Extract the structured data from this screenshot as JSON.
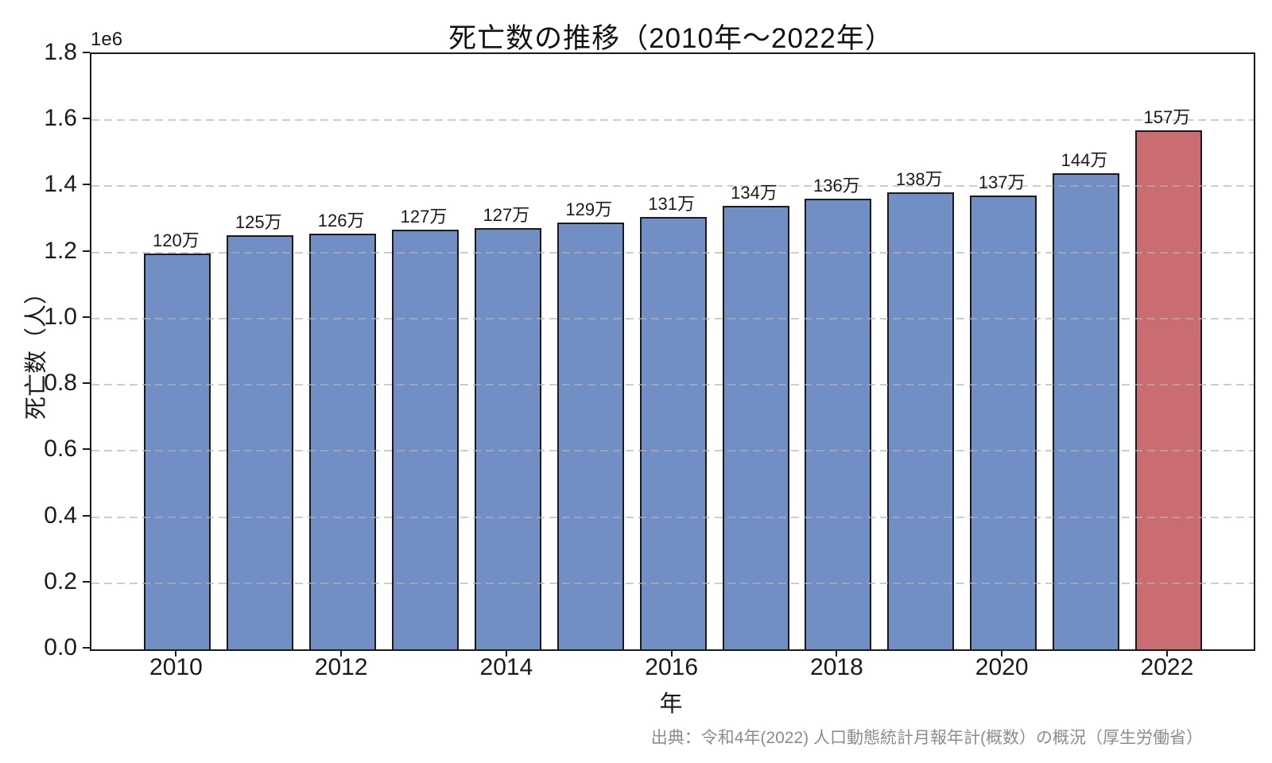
{
  "title": "死亡数の推移（2010年～2022年）",
  "axis_offset_label": "1e6",
  "xlabel": "年",
  "ylabel": "死亡数（人）",
  "source": "出典：令和4年(2022) 人口動態統計月報年計(概数）の概況（厚生労働省）",
  "colors": {
    "bar": "#728FC5",
    "bar_highlight": "#C96D72",
    "bar_edge": "#1a1a1a",
    "grid": "#cccccc",
    "source_text": "#8c8c8c"
  },
  "chart_data": {
    "type": "bar",
    "title": "死亡数の推移（2010年～2022年）",
    "xlabel": "年",
    "ylabel": "死亡数（人）",
    "categories": [
      2010,
      2011,
      2012,
      2013,
      2014,
      2015,
      2016,
      2017,
      2018,
      2019,
      2020,
      2021,
      2022
    ],
    "values": [
      1197000,
      1253000,
      1256000,
      1268000,
      1273000,
      1290000,
      1308000,
      1340000,
      1362000,
      1381000,
      1373000,
      1440000,
      1569000
    ],
    "bar_labels": [
      "120万",
      "125万",
      "126万",
      "127万",
      "127万",
      "129万",
      "131万",
      "134万",
      "136万",
      "138万",
      "137万",
      "144万",
      "157万"
    ],
    "highlight_index": 12,
    "ylim": [
      0,
      1800000
    ],
    "yticks": [
      0.0,
      0.2,
      0.4,
      0.6,
      0.8,
      1.0,
      1.2,
      1.4,
      1.6,
      1.8
    ],
    "ytick_labels": [
      "0.0",
      "0.2",
      "0.4",
      "0.6",
      "0.8",
      "1.0",
      "1.2",
      "1.4",
      "1.6",
      "1.8"
    ],
    "ytick_unit": "1e6",
    "xticks": [
      2010,
      2012,
      2014,
      2016,
      2018,
      2020,
      2022
    ],
    "grid": "horizontal-dashed",
    "legend": "none"
  }
}
